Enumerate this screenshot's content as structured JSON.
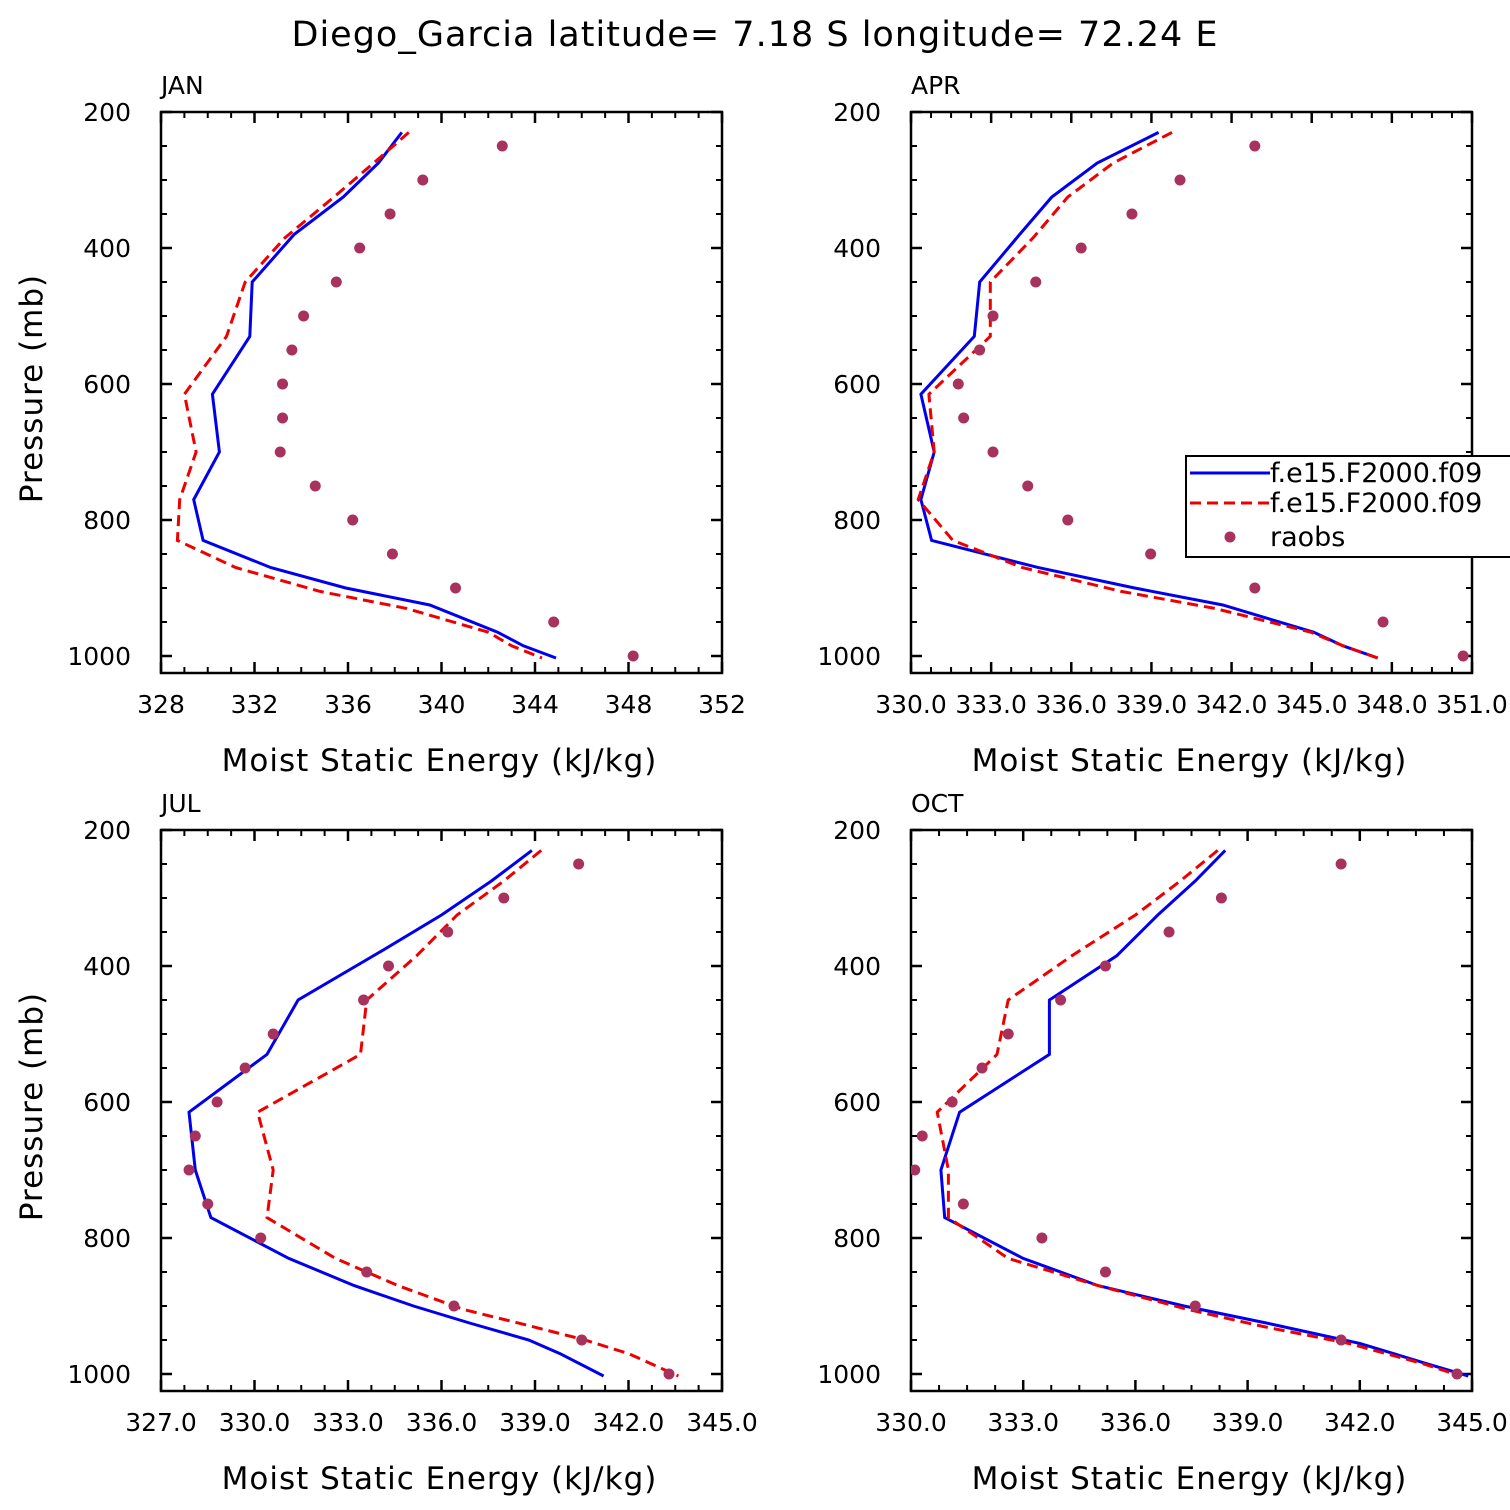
{
  "title": "Diego_Garcia  latitude= 7.18 S longitude= 72.24 E",
  "colors": {
    "model_a": "#0000ee",
    "model_b": "#ee0000",
    "raobs": "#a8325e"
  },
  "legend": {
    "entries": [
      {
        "label": "f.e15.F2000.f09",
        "style": "solid"
      },
      {
        "label": "f.e15.F2000.f09",
        "style": "dashed"
      },
      {
        "label": "raobs",
        "style": "marker"
      }
    ]
  },
  "chart_data": [
    {
      "type": "line",
      "panel": "JAN",
      "xlabel": "Moist Static Energy (kJ/kg)",
      "ylabel": "Pressure (mb)",
      "xlim": [
        328,
        352
      ],
      "xticks": [
        328,
        332,
        336,
        340,
        344,
        348,
        352
      ],
      "xtick_labels": [
        "328",
        "332",
        "336",
        "340",
        "344",
        "348",
        "352"
      ],
      "ylim": [
        200,
        1000
      ],
      "yticks": [
        200,
        400,
        600,
        800,
        1000
      ],
      "yticklabels": [
        "200",
        "400",
        "600",
        "800",
        "1000"
      ],
      "series": [
        {
          "name": "f.e15.F2000.f09 (solid)",
          "style": "solid",
          "x": [
            338.3,
            337.3,
            335.8,
            333.7,
            331.9,
            331.8,
            330.2,
            330.5,
            329.4,
            329.8,
            332.7,
            335.9,
            339.5,
            342.4,
            343.5,
            344.9
          ],
          "y": [
            230,
            275,
            325,
            380,
            450,
            530,
            615,
            700,
            770,
            830,
            870,
            900,
            925,
            965,
            985,
            1003
          ]
        },
        {
          "name": "f.e15.F2000.f09 (dashed)",
          "style": "dashed",
          "x": [
            338.6,
            337.1,
            335.4,
            333.3,
            331.6,
            330.8,
            329.0,
            329.5,
            328.8,
            328.7,
            331.2,
            334.8,
            338.5,
            342.0,
            343.0,
            344.3
          ],
          "y": [
            230,
            275,
            325,
            385,
            450,
            530,
            615,
            700,
            770,
            830,
            870,
            905,
            930,
            965,
            985,
            1003
          ]
        },
        {
          "name": "raobs",
          "style": "marker",
          "x": [
            342.6,
            339.2,
            337.8,
            336.5,
            335.5,
            334.1,
            333.6,
            333.2,
            333.2,
            333.1,
            334.6,
            336.2,
            337.9,
            340.6,
            344.8,
            348.2
          ],
          "y": [
            250,
            300,
            350,
            400,
            450,
            500,
            550,
            600,
            650,
            700,
            750,
            800,
            850,
            900,
            950,
            1000
          ]
        }
      ]
    },
    {
      "type": "line",
      "panel": "APR",
      "xlabel": "Moist Static Energy (kJ/kg)",
      "ylabel": "Pressure (mb)",
      "xlim": [
        330.03,
        351.03
      ],
      "xticks": [
        330.03,
        333.03,
        336.03,
        339.03,
        342.03,
        345.03,
        348.03,
        351.03
      ],
      "xtick_labels": [
        "330.0",
        "333.0",
        "336.0",
        "339.0",
        "342.0",
        "345.0",
        "348.0",
        "351.0"
      ],
      "ylim": [
        200,
        1000
      ],
      "yticks": [
        200,
        400,
        600,
        800,
        1000
      ],
      "yticklabels": [
        "200",
        "400",
        "600",
        "800",
        "1000"
      ],
      "series": [
        {
          "name": "f.e15.F2000.f09 (solid)",
          "style": "solid",
          "x": [
            339.3,
            337.0,
            335.3,
            334.1,
            332.6,
            332.4,
            330.4,
            330.9,
            330.4,
            330.8,
            334.8,
            338.4,
            341.7,
            345.1,
            346.2,
            347.5
          ],
          "y": [
            230,
            275,
            325,
            380,
            450,
            530,
            615,
            700,
            770,
            830,
            870,
            900,
            925,
            965,
            985,
            1003
          ]
        },
        {
          "name": "f.e15.F2000.f09 (dashed)",
          "style": "dashed",
          "x": [
            339.8,
            337.6,
            335.9,
            334.6,
            333.0,
            333.0,
            330.7,
            330.9,
            330.3,
            331.6,
            334.2,
            337.9,
            341.4,
            345.0,
            346.2,
            347.5
          ],
          "y": [
            230,
            275,
            325,
            385,
            450,
            530,
            615,
            700,
            770,
            830,
            870,
            905,
            930,
            965,
            985,
            1003
          ]
        },
        {
          "name": "raobs",
          "style": "marker",
          "x": [
            342.9,
            340.1,
            338.3,
            336.4,
            334.7,
            333.1,
            332.6,
            331.8,
            332.0,
            333.1,
            334.4,
            335.9,
            339.0,
            342.9,
            347.7,
            350.7
          ],
          "y": [
            250,
            300,
            350,
            400,
            450,
            500,
            550,
            600,
            650,
            700,
            750,
            800,
            850,
            900,
            950,
            1000
          ]
        }
      ]
    },
    {
      "type": "line",
      "panel": "JUL",
      "xlabel": "Moist Static Energy (kJ/kg)",
      "ylabel": "Pressure (mb)",
      "xlim": [
        327,
        345
      ],
      "xticks": [
        327,
        330,
        333,
        336,
        339,
        342,
        345
      ],
      "xtick_labels": [
        "327.0",
        "330.0",
        "333.0",
        "336.0",
        "339.0",
        "342.0",
        "345.0"
      ],
      "ylim": [
        200,
        1000
      ],
      "yticks": [
        200,
        400,
        600,
        800,
        1000
      ],
      "yticklabels": [
        "200",
        "400",
        "600",
        "800",
        "1000"
      ],
      "series": [
        {
          "name": "f.e15.F2000.f09 (solid)",
          "style": "solid",
          "x": [
            338.9,
            337.6,
            336.0,
            334.0,
            331.4,
            330.4,
            327.9,
            328.1,
            328.6,
            331.1,
            333.2,
            335.1,
            336.9,
            338.8,
            339.8,
            341.2
          ],
          "y": [
            230,
            275,
            325,
            380,
            450,
            530,
            615,
            700,
            770,
            830,
            870,
            900,
            925,
            950,
            970,
            1003
          ]
        },
        {
          "name": "f.e15.F2000.f09 (dashed)",
          "style": "dashed",
          "x": [
            339.2,
            338.0,
            336.5,
            335.2,
            333.6,
            333.4,
            330.1,
            330.6,
            330.4,
            332.6,
            334.6,
            336.7,
            338.9,
            340.6,
            342.0,
            343.6
          ],
          "y": [
            230,
            275,
            325,
            385,
            450,
            530,
            615,
            700,
            770,
            830,
            870,
            905,
            930,
            950,
            970,
            1003
          ]
        },
        {
          "name": "raobs",
          "style": "marker",
          "x": [
            340.4,
            338.0,
            336.2,
            334.3,
            333.5,
            330.6,
            329.7,
            328.8,
            328.1,
            327.9,
            328.5,
            330.2,
            333.6,
            336.4,
            340.5,
            343.3
          ],
          "y": [
            250,
            300,
            350,
            400,
            450,
            500,
            550,
            600,
            650,
            700,
            750,
            800,
            850,
            900,
            950,
            1000
          ]
        }
      ]
    },
    {
      "type": "line",
      "panel": "OCT",
      "xlabel": "Moist Static Energy (kJ/kg)",
      "ylabel": "Pressure (mb)",
      "xlim": [
        330,
        345
      ],
      "xticks": [
        330,
        333,
        336,
        339,
        342,
        345
      ],
      "xtick_labels": [
        "330.0",
        "333.0",
        "336.0",
        "339.0",
        "342.0",
        "345.0"
      ],
      "ylim": [
        200,
        1000
      ],
      "yticks": [
        200,
        400,
        600,
        800,
        1000
      ],
      "yticklabels": [
        "200",
        "400",
        "600",
        "800",
        "1000"
      ],
      "series": [
        {
          "name": "f.e15.F2000.f09 (solid)",
          "style": "solid",
          "x": [
            338.4,
            337.6,
            336.6,
            335.5,
            333.7,
            333.7,
            331.3,
            330.8,
            330.9,
            333.0,
            335.0,
            337.3,
            339.5,
            342.0,
            343.8,
            344.9
          ],
          "y": [
            230,
            275,
            325,
            385,
            450,
            530,
            615,
            700,
            770,
            830,
            870,
            900,
            925,
            955,
            985,
            1003
          ]
        },
        {
          "name": "f.e15.F2000.f09 (dashed)",
          "style": "dashed",
          "x": [
            338.2,
            337.2,
            336.0,
            334.3,
            332.6,
            332.3,
            330.7,
            331.0,
            331.0,
            332.6,
            335.0,
            337.4,
            339.4,
            341.7,
            343.7,
            344.7
          ],
          "y": [
            230,
            275,
            325,
            385,
            450,
            530,
            615,
            700,
            770,
            830,
            870,
            905,
            930,
            955,
            985,
            1003
          ]
        },
        {
          "name": "raobs",
          "style": "marker",
          "x": [
            341.5,
            338.3,
            336.9,
            335.2,
            334.0,
            332.6,
            331.9,
            331.1,
            330.3,
            330.1,
            331.4,
            333.5,
            335.2,
            337.6,
            341.5,
            344.6
          ],
          "y": [
            250,
            300,
            350,
            400,
            450,
            500,
            550,
            600,
            650,
            700,
            750,
            800,
            850,
            900,
            950,
            1000
          ]
        }
      ]
    }
  ]
}
